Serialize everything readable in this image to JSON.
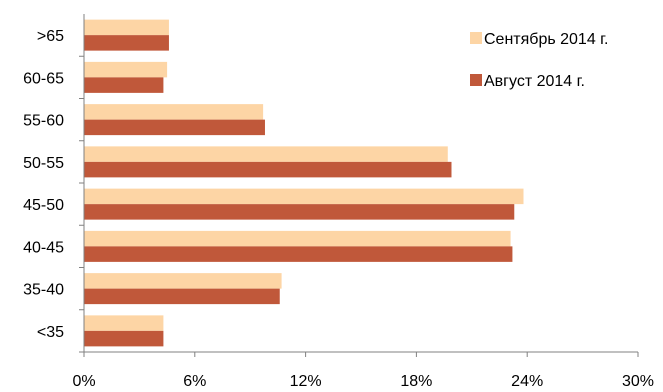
{
  "chart_data": {
    "type": "bar",
    "orientation": "horizontal",
    "categories": [
      ">65",
      "60-65",
      "55-60",
      "50-55",
      "45-50",
      "40-45",
      "35-40",
      "<35"
    ],
    "series": [
      {
        "name": "Сентябрь 2014 г.",
        "color": "#fdd5a5",
        "values": [
          4.6,
          4.5,
          9.7,
          19.7,
          23.8,
          23.1,
          10.7,
          4.3
        ]
      },
      {
        "name": "Август 2014 г.",
        "color": "#c0583a",
        "values": [
          4.6,
          4.3,
          9.8,
          19.9,
          23.3,
          23.2,
          10.6,
          4.3
        ]
      }
    ],
    "xticks": [
      "0%",
      "6%",
      "12%",
      "18%",
      "24%",
      "30%"
    ],
    "xlim": [
      0,
      30
    ],
    "grid": false,
    "legend_position": "top-right",
    "title": "",
    "xlabel": "",
    "ylabel": ""
  }
}
